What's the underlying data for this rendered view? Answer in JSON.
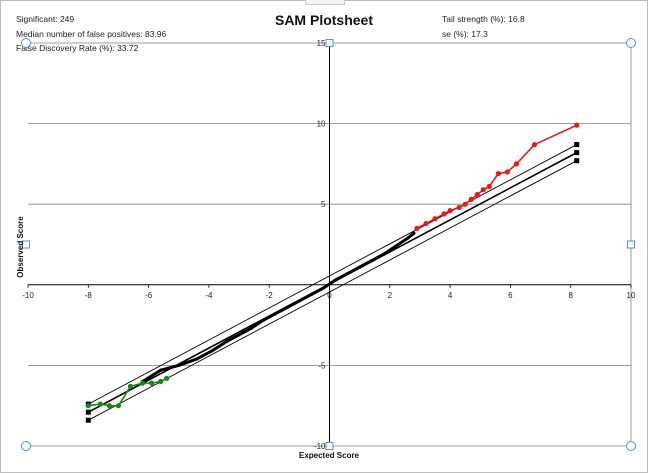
{
  "stats": {
    "significant": "Significant:  249",
    "median_false_positives": "Median number of false positives:  83.96",
    "fdr": "False Discovery  Rate  (%): 33.72",
    "tail_strength": "Tail strength  (%):  16.8",
    "se": "se (%): 17.3"
  },
  "colors": {
    "positive": "#e8191a",
    "negative": "#138a13",
    "null_points": "#000000",
    "grid": "#7f7f7f",
    "border": "#bdbdbd",
    "handle": "#5a8fc7"
  },
  "chart_data": {
    "type": "scatter",
    "title": "SAM Plotsheet",
    "xlabel": "Expected Score",
    "ylabel": "Observed Score",
    "xlim": [
      -10,
      10
    ],
    "ylim": [
      -10,
      15
    ],
    "xticks": [
      -10,
      -8,
      -6,
      -4,
      -2,
      0,
      2,
      4,
      6,
      8,
      10
    ],
    "yticks": [
      -10,
      -5,
      5,
      10,
      15
    ],
    "grid": true,
    "series": [
      {
        "role": "non-significant",
        "color": "#000000",
        "x": [
          -6.2,
          -5.6,
          -5.0,
          -4.4,
          -3.9,
          -3.4,
          -3.0,
          -2.6,
          -2.2,
          -1.8,
          -1.4,
          -1.0,
          -0.6,
          -0.2,
          0.2,
          0.6,
          1.0,
          1.4,
          1.8,
          2.2,
          2.6,
          2.8
        ],
        "y": [
          -6.0,
          -5.3,
          -5.0,
          -4.6,
          -4.1,
          -3.5,
          -3.1,
          -2.7,
          -2.2,
          -1.8,
          -1.4,
          -1.0,
          -0.6,
          -0.2,
          0.3,
          0.7,
          1.1,
          1.5,
          1.9,
          2.4,
          2.9,
          3.2
        ]
      },
      {
        "role": "significant positive",
        "color": "#e8191a",
        "x": [
          2.9,
          3.2,
          3.5,
          3.8,
          4.0,
          4.3,
          4.5,
          4.7,
          4.9,
          5.1,
          5.3,
          5.6,
          5.9,
          6.2,
          6.8,
          8.2
        ],
        "y": [
          3.5,
          3.8,
          4.1,
          4.4,
          4.6,
          4.8,
          5.0,
          5.3,
          5.6,
          5.9,
          6.1,
          6.9,
          7.0,
          7.5,
          8.7,
          9.9
        ]
      },
      {
        "role": "significant negative",
        "color": "#138a13",
        "x": [
          -8.0,
          -7.6,
          -7.3,
          -7.0,
          -6.6,
          -6.2,
          -5.9,
          -5.6,
          -5.4
        ],
        "y": [
          -7.5,
          -7.4,
          -7.5,
          -7.5,
          -6.3,
          -6.1,
          -6.1,
          -6.0,
          -5.8
        ]
      }
    ],
    "reference_lines": {
      "x": [
        -8.0,
        8.2
      ],
      "y_lower": [
        -8.4,
        7.7
      ],
      "y_middle": [
        -7.9,
        8.2
      ],
      "y_upper": [
        -7.4,
        8.7
      ]
    }
  }
}
